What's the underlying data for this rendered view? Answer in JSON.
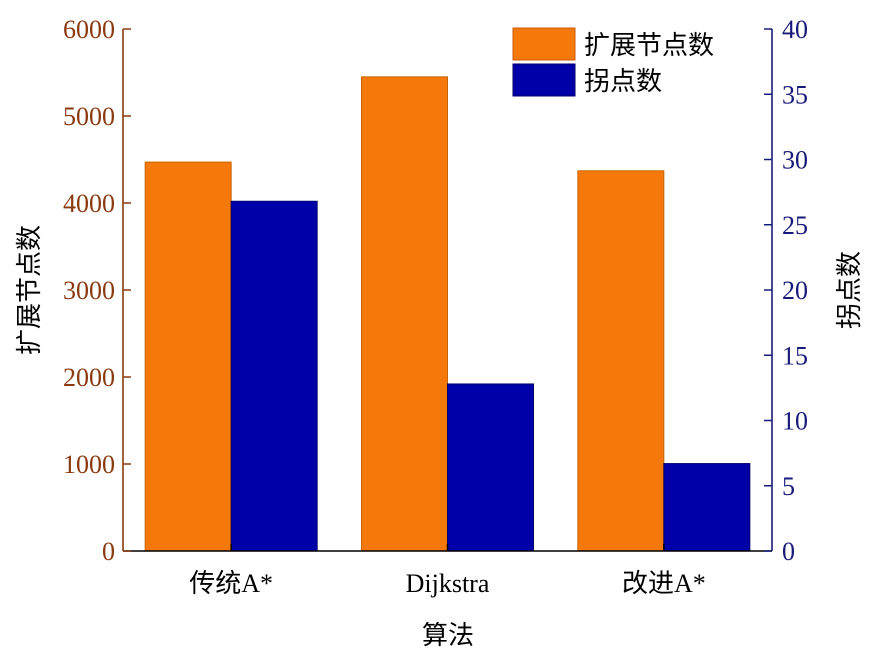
{
  "chart_data": {
    "type": "bar",
    "categories": [
      "传统A*",
      "Dijkstra",
      "改进A*"
    ],
    "series": [
      {
        "name": "扩展节点数",
        "axis": "left",
        "color": "#F5780A",
        "values": [
          4470,
          5450,
          4370
        ]
      },
      {
        "name": "拐点数",
        "axis": "right",
        "color": "#0000A8",
        "values": [
          26.8,
          12.8,
          6.7
        ]
      }
    ],
    "xlabel": "算法",
    "ylabel_left": "扩展节点数",
    "ylabel_right": "拐点数",
    "ylim_left": [
      0,
      6000
    ],
    "ylim_right": [
      0,
      40
    ],
    "yticks_left": [
      0,
      1000,
      2000,
      3000,
      4000,
      5000,
      6000
    ],
    "yticks_right": [
      0,
      5,
      10,
      15,
      20,
      25,
      30,
      35,
      40
    ],
    "left_axis_color": "#8B3A0F",
    "right_axis_color": "#1A1A7A",
    "grid": false,
    "legend_position": "top-right"
  }
}
